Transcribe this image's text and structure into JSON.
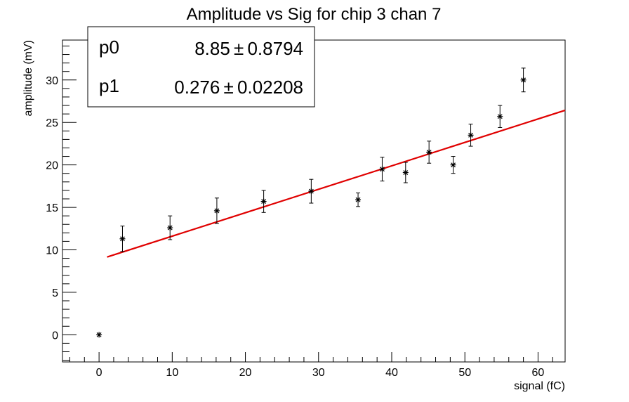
{
  "chart_data": {
    "type": "scatter",
    "title": "Amplitude vs Sig for chip 3 chan 7",
    "xlabel": "signal (fC)",
    "ylabel": "amplitude (mV)",
    "xlim": [
      -5,
      63.7
    ],
    "ylim": [
      -3.2,
      34.7
    ],
    "x_major_ticks": [
      0,
      10,
      20,
      30,
      40,
      50,
      60
    ],
    "x_tick_labels": [
      "0",
      "10",
      "20",
      "30",
      "40",
      "50",
      "60"
    ],
    "x_minor_step": 2,
    "y_major_ticks": [
      0,
      5,
      10,
      15,
      20,
      25,
      30
    ],
    "y_tick_labels": [
      "0",
      "5",
      "10",
      "15",
      "20",
      "25",
      "30"
    ],
    "y_minor_step": 1,
    "grid": false,
    "colors": {
      "points": "#000000",
      "fit": "#e00000",
      "background": "#ffffff"
    },
    "points": [
      {
        "x": 0,
        "y": 0,
        "err": 0
      },
      {
        "x": 3.2,
        "y": 11.3,
        "err": 1.5
      },
      {
        "x": 9.7,
        "y": 12.6,
        "err": 1.4
      },
      {
        "x": 16.1,
        "y": 14.6,
        "err": 1.5
      },
      {
        "x": 22.5,
        "y": 15.7,
        "err": 1.3
      },
      {
        "x": 29.0,
        "y": 16.9,
        "err": 1.4
      },
      {
        "x": 35.4,
        "y": 15.9,
        "err": 0.8
      },
      {
        "x": 38.7,
        "y": 19.5,
        "err": 1.4
      },
      {
        "x": 41.9,
        "y": 19.1,
        "err": 1.2
      },
      {
        "x": 45.1,
        "y": 21.5,
        "err": 1.3
      },
      {
        "x": 48.4,
        "y": 20.0,
        "err": 1.0
      },
      {
        "x": 50.8,
        "y": 23.5,
        "err": 1.3
      },
      {
        "x": 54.8,
        "y": 25.7,
        "err": 1.3
      },
      {
        "x": 58.0,
        "y": 30.0,
        "err": 1.4
      }
    ],
    "fit": {
      "p0": 8.85,
      "p1": 0.276,
      "x_range": [
        1.1,
        63.7
      ]
    },
    "stats_box": {
      "location": "top-left",
      "rows": [
        {
          "name": "p0",
          "value": "8.85",
          "error": "0.8794"
        },
        {
          "name": "p1",
          "value": "0.276",
          "error": "0.02208"
        }
      ]
    }
  }
}
